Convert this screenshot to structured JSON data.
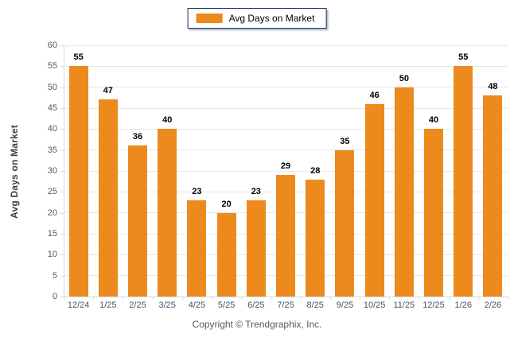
{
  "legend": {
    "label": "Avg Days on Market"
  },
  "y_axis_title": "Avg Days on Market",
  "footer": "Copyright © Trendgraphix, Inc.",
  "colors": {
    "bar": "#ED8A1D",
    "legend_border": "#17375E",
    "gridline": "#E8E8E8",
    "axis_line": "#D8D8D8",
    "x_tick_label": "#44546A",
    "y_tick_label": "#595959",
    "value_label": "#000000"
  },
  "chart_data": {
    "type": "bar",
    "title": "Avg Days on Market",
    "categories": [
      "12/24",
      "1/25",
      "2/25",
      "3/25",
      "4/25",
      "5/25",
      "6/25",
      "7/25",
      "8/25",
      "9/25",
      "10/25",
      "11/25",
      "12/25",
      "1/26",
      "2/26"
    ],
    "values": [
      55,
      47,
      36,
      40,
      23,
      20,
      23,
      29,
      28,
      35,
      46,
      50,
      40,
      55,
      48
    ],
    "xlabel": "",
    "ylabel": "Avg Days on Market",
    "ylim": [
      0,
      60
    ],
    "ytick_step": 5,
    "yticks": [
      0,
      5,
      10,
      15,
      20,
      25,
      30,
      35,
      40,
      45,
      50,
      55,
      60
    ],
    "grid": true,
    "legend_position": "top-center",
    "value_labels_shown": true
  }
}
